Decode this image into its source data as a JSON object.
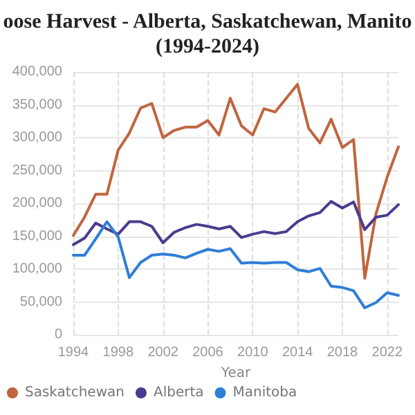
{
  "chart_data": {
    "type": "line",
    "title": "oose Harvest - Alberta, Saskatchewan, Manito\n(1994-2024)",
    "xlabel": "Year",
    "x": [
      1994,
      1995,
      1996,
      1997,
      1998,
      1999,
      2000,
      2001,
      2002,
      2003,
      2004,
      2005,
      2006,
      2007,
      2008,
      2009,
      2010,
      2011,
      2012,
      2013,
      2014,
      2015,
      2016,
      2017,
      2018,
      2019,
      2020,
      2021,
      2022,
      2023
    ],
    "series": [
      {
        "name": "Saskatchewan",
        "color": "#c0653f",
        "values": [
          151000,
          179000,
          214000,
          214000,
          281000,
          307000,
          345000,
          352000,
          300000,
          311000,
          316000,
          316000,
          326000,
          304000,
          360000,
          318000,
          304000,
          344000,
          339000,
          360000,
          381000,
          314000,
          292000,
          328000,
          285000,
          297000,
          86000,
          184000,
          240000,
          286000
        ]
      },
      {
        "name": "Alberta",
        "color": "#4b3b8f",
        "values": [
          137000,
          147000,
          170000,
          161000,
          153000,
          172000,
          172000,
          165000,
          140000,
          156000,
          163000,
          168000,
          165000,
          161000,
          165000,
          148000,
          153000,
          157000,
          154000,
          157000,
          172000,
          181000,
          186000,
          203000,
          193000,
          202000,
          160000,
          179000,
          182000,
          198000
        ]
      },
      {
        "name": "Manitoba",
        "color": "#2f7ed8",
        "values": [
          121000,
          121000,
          146000,
          172000,
          149000,
          87000,
          110000,
          121000,
          123000,
          121000,
          117000,
          124000,
          130000,
          127000,
          131000,
          109000,
          110000,
          109000,
          110000,
          110000,
          99000,
          96000,
          101000,
          74000,
          72000,
          67000,
          41000,
          49000,
          64000,
          60000
        ]
      }
    ],
    "xlim": [
      1994,
      2023
    ],
    "xticks": [
      1994,
      1998,
      2002,
      2006,
      2010,
      2014,
      2018,
      2022
    ],
    "ylim": [
      0,
      400000
    ],
    "yticks": [
      0,
      {
        "value": 50000,
        "label": "50,000"
      },
      {
        "value": 100000,
        "label": "100,000"
      },
      {
        "value": 150000,
        "label": "150,000"
      },
      {
        "value": 200000,
        "label": "200,000"
      },
      {
        "value": 250000,
        "label": "250,000"
      },
      {
        "value": 300000,
        "label": "300,000"
      },
      {
        "value": 350000,
        "label": "350,000"
      },
      {
        "value": 400000,
        "label": "400,000"
      }
    ],
    "grid": true,
    "legend": "bottom left",
    "marker": "none",
    "line_style": "solid"
  }
}
